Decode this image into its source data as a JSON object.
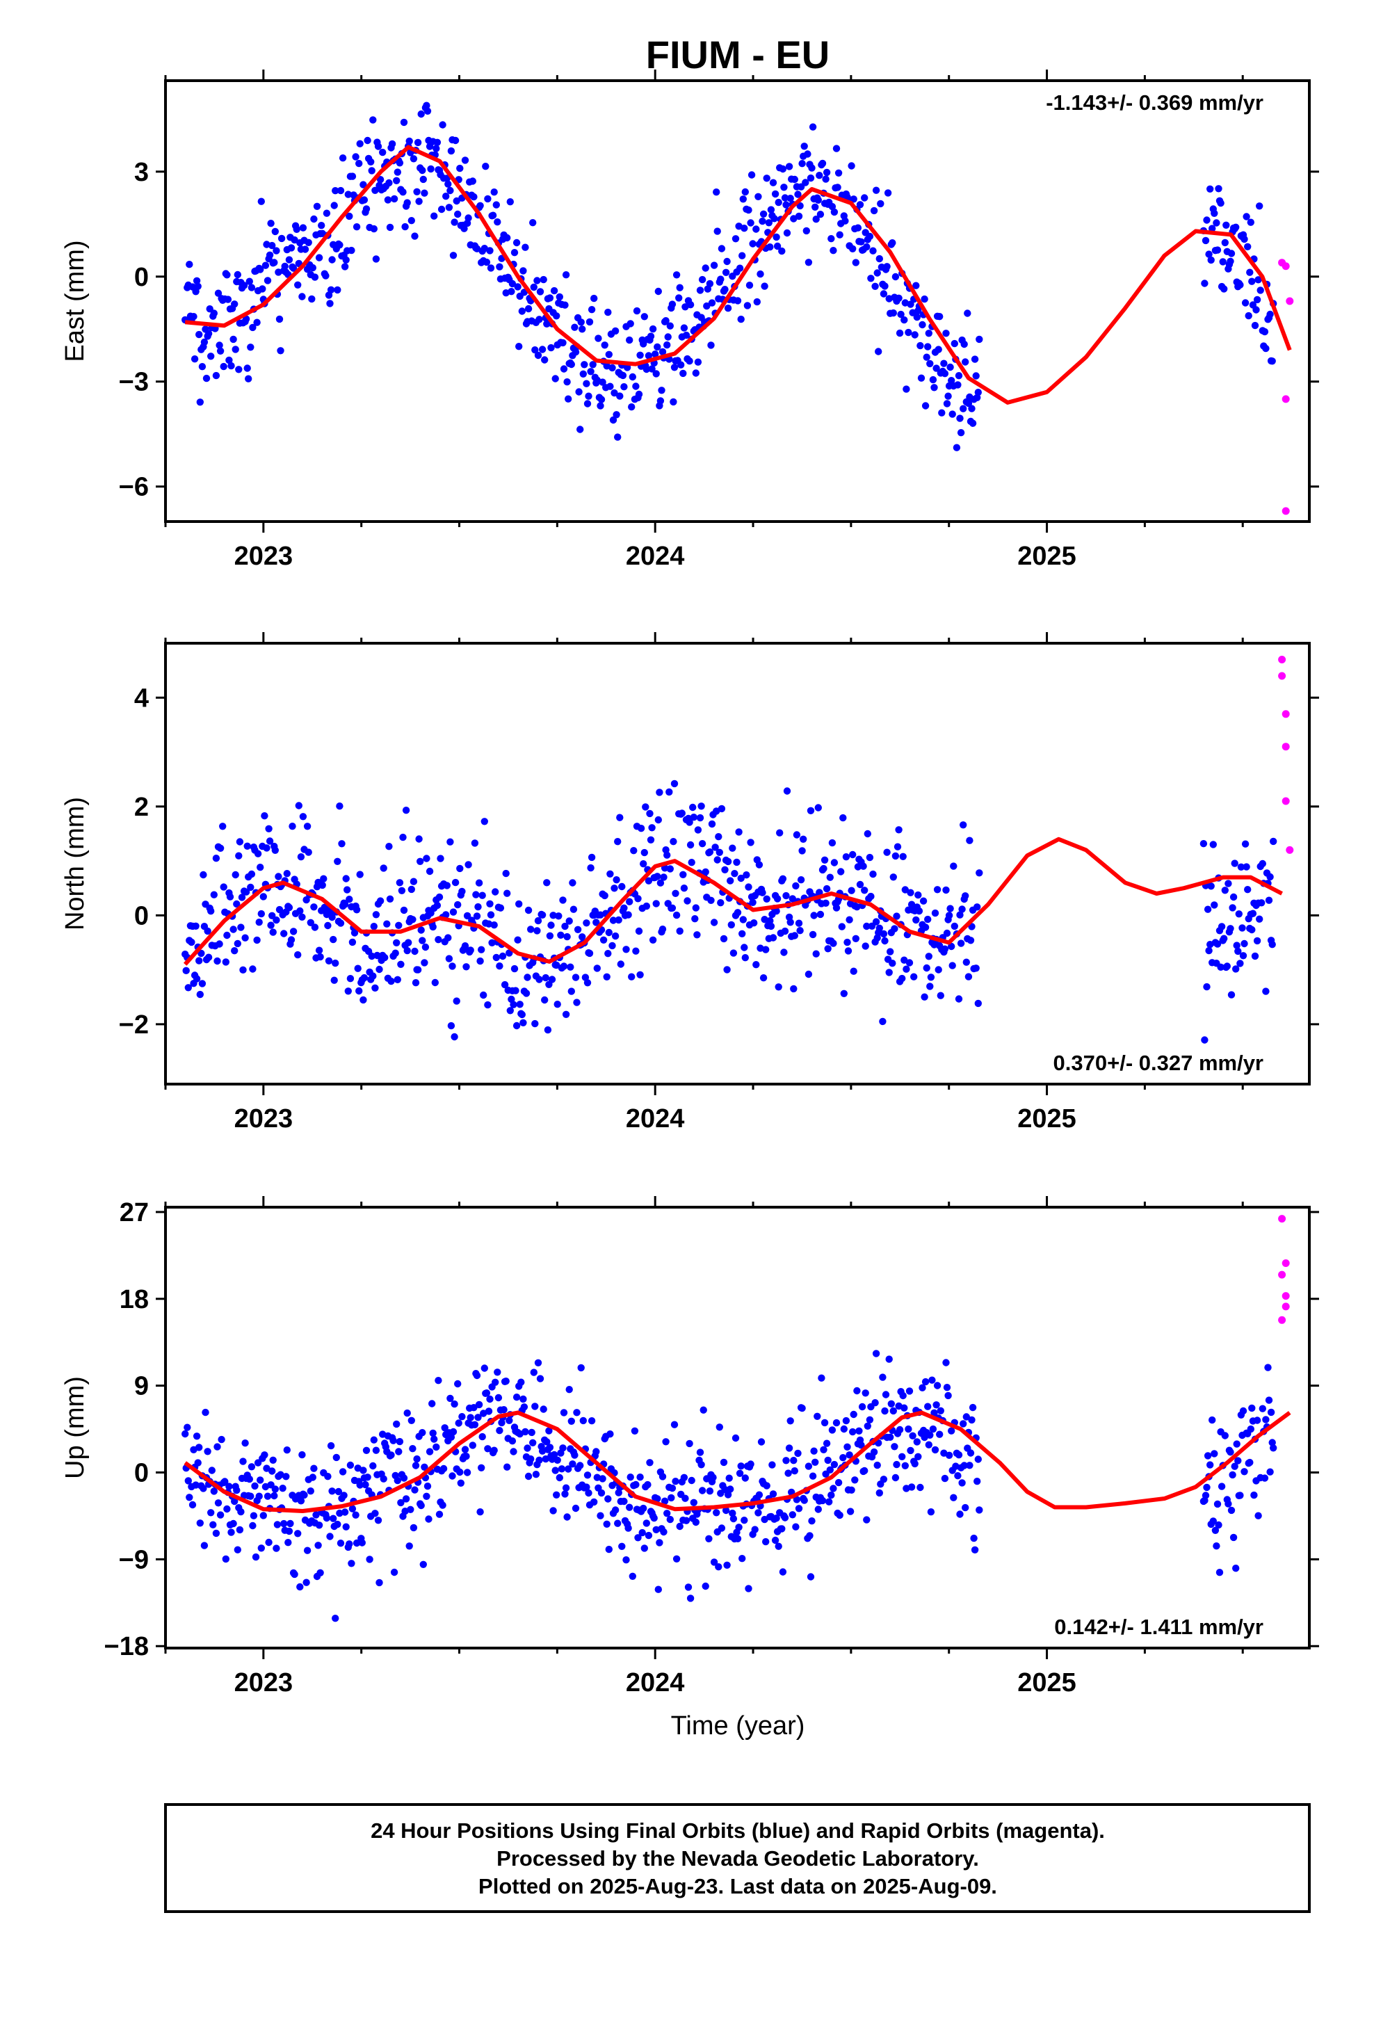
{
  "title": "FIUM - EU",
  "xlabel": "Time (year)",
  "footer": {
    "line1": "24 Hour Positions Using Final Orbits (blue) and Rapid Orbits (magenta).",
    "line2": "Processed by the Nevada Geodetic Laboratory.",
    "line3": "Plotted on 2025-Aug-23. Last data on 2025-Aug-09."
  },
  "colors": {
    "final": "#0000ff",
    "rapid": "#ff00ff",
    "model": "#ff0000"
  },
  "chart_data": [
    {
      "type": "scatter",
      "ylabel": "East (mm)",
      "rate": "-1.143+/- 0.369 mm/yr",
      "rate_position": "top-right",
      "xlim": [
        2022.75,
        2025.67
      ],
      "ylim": [
        -7.0,
        5.6
      ],
      "xticks": [
        2023,
        2024,
        2025
      ],
      "yticks": [
        -6,
        -3,
        0,
        3
      ],
      "final_data_range": [
        [
          2022.8,
          2024.83
        ],
        [
          2025.4,
          2025.58
        ]
      ],
      "series": [
        {
          "name": "Final Orbits",
          "color": "blue",
          "sampled_points": [
            [
              2022.8,
              -1.2
            ],
            [
              2022.9,
              -1.6
            ],
            [
              2023.0,
              -0.4
            ],
            [
              2023.1,
              0.6
            ],
            [
              2023.2,
              1.4
            ],
            [
              2023.3,
              2.8
            ],
            [
              2023.4,
              3.6
            ],
            [
              2023.5,
              2.6
            ],
            [
              2023.6,
              0.8
            ],
            [
              2023.7,
              -0.9
            ],
            [
              2023.8,
              -2.2
            ],
            [
              2023.9,
              -2.6
            ],
            [
              2024.0,
              -2.3
            ],
            [
              2024.1,
              -1.2
            ],
            [
              2024.2,
              0.5
            ],
            [
              2024.3,
              1.9
            ],
            [
              2024.4,
              2.6
            ],
            [
              2024.5,
              1.8
            ],
            [
              2024.6,
              0.0
            ],
            [
              2024.7,
              -2.0
            ],
            [
              2024.8,
              -3.3
            ],
            [
              2025.42,
              1.4
            ],
            [
              2025.5,
              0.5
            ],
            [
              2025.58,
              -1.8
            ]
          ]
        },
        {
          "name": "Rapid Orbits",
          "color": "magenta",
          "points": [
            [
              2025.6,
              0.4
            ],
            [
              2025.61,
              0.3
            ],
            [
              2025.62,
              -0.7
            ],
            [
              2025.61,
              -3.5
            ],
            [
              2025.61,
              -6.7
            ]
          ]
        },
        {
          "name": "model",
          "color": "red",
          "curve": [
            [
              2022.8,
              -1.3
            ],
            [
              2022.9,
              -1.4
            ],
            [
              2023.0,
              -0.8
            ],
            [
              2023.1,
              0.3
            ],
            [
              2023.2,
              1.7
            ],
            [
              2023.3,
              3.0
            ],
            [
              2023.37,
              3.7
            ],
            [
              2023.45,
              3.3
            ],
            [
              2023.55,
              1.8
            ],
            [
              2023.65,
              0.0
            ],
            [
              2023.75,
              -1.5
            ],
            [
              2023.85,
              -2.4
            ],
            [
              2023.95,
              -2.5
            ],
            [
              2024.05,
              -2.2
            ],
            [
              2024.15,
              -1.2
            ],
            [
              2024.25,
              0.5
            ],
            [
              2024.35,
              2.0
            ],
            [
              2024.4,
              2.5
            ],
            [
              2024.5,
              2.1
            ],
            [
              2024.6,
              0.7
            ],
            [
              2024.7,
              -1.2
            ],
            [
              2024.8,
              -2.9
            ],
            [
              2024.9,
              -3.6
            ],
            [
              2025.0,
              -3.3
            ],
            [
              2025.1,
              -2.3
            ],
            [
              2025.2,
              -0.9
            ],
            [
              2025.3,
              0.6
            ],
            [
              2025.38,
              1.3
            ],
            [
              2025.47,
              1.2
            ],
            [
              2025.55,
              0.0
            ],
            [
              2025.62,
              -2.1
            ]
          ]
        }
      ]
    },
    {
      "type": "scatter",
      "ylabel": "North (mm)",
      "rate": "0.370+/- 0.327 mm/yr",
      "rate_position": "bottom-right",
      "xlim": [
        2022.75,
        2025.67
      ],
      "ylim": [
        -3.1,
        5.0
      ],
      "xticks": [
        2023,
        2024,
        2025
      ],
      "yticks": [
        -2,
        0,
        2,
        4
      ],
      "final_data_range": [
        [
          2022.8,
          2024.83
        ],
        [
          2025.4,
          2025.58
        ]
      ],
      "series": [
        {
          "name": "Final Orbits",
          "color": "blue",
          "sampled_points": [
            [
              2022.8,
              -0.8
            ],
            [
              2022.9,
              0.0
            ],
            [
              2023.0,
              0.6
            ],
            [
              2023.1,
              0.3
            ],
            [
              2023.2,
              -0.4
            ],
            [
              2023.3,
              -0.6
            ],
            [
              2023.4,
              -0.2
            ],
            [
              2023.5,
              0.1
            ],
            [
              2023.6,
              -0.5
            ],
            [
              2023.7,
              -0.9
            ],
            [
              2023.8,
              -0.8
            ],
            [
              2023.9,
              0.0
            ],
            [
              2024.0,
              0.8
            ],
            [
              2024.1,
              1.1
            ],
            [
              2024.2,
              0.4
            ],
            [
              2024.3,
              0.1
            ],
            [
              2024.4,
              0.4
            ],
            [
              2024.5,
              0.3
            ],
            [
              2024.6,
              -0.1
            ],
            [
              2024.7,
              -0.5
            ],
            [
              2024.8,
              -0.3
            ],
            [
              2025.45,
              -0.3
            ],
            [
              2025.52,
              0.3
            ]
          ]
        },
        {
          "name": "Rapid Orbits",
          "color": "magenta",
          "points": [
            [
              2025.6,
              4.7
            ],
            [
              2025.6,
              4.4
            ],
            [
              2025.61,
              3.7
            ],
            [
              2025.61,
              3.1
            ],
            [
              2025.61,
              2.1
            ],
            [
              2025.62,
              1.2
            ]
          ]
        },
        {
          "name": "model",
          "color": "red",
          "curve": [
            [
              2022.8,
              -0.9
            ],
            [
              2022.9,
              -0.1
            ],
            [
              2023.0,
              0.5
            ],
            [
              2023.05,
              0.6
            ],
            [
              2023.15,
              0.3
            ],
            [
              2023.25,
              -0.3
            ],
            [
              2023.35,
              -0.3
            ],
            [
              2023.45,
              -0.05
            ],
            [
              2023.55,
              -0.2
            ],
            [
              2023.65,
              -0.7
            ],
            [
              2023.73,
              -0.85
            ],
            [
              2023.82,
              -0.5
            ],
            [
              2023.92,
              0.3
            ],
            [
              2024.0,
              0.9
            ],
            [
              2024.05,
              1.0
            ],
            [
              2024.15,
              0.6
            ],
            [
              2024.25,
              0.1
            ],
            [
              2024.35,
              0.2
            ],
            [
              2024.45,
              0.4
            ],
            [
              2024.55,
              0.2
            ],
            [
              2024.65,
              -0.3
            ],
            [
              2024.75,
              -0.5
            ],
            [
              2024.85,
              0.2
            ],
            [
              2024.95,
              1.1
            ],
            [
              2025.03,
              1.4
            ],
            [
              2025.1,
              1.2
            ],
            [
              2025.2,
              0.6
            ],
            [
              2025.28,
              0.4
            ],
            [
              2025.35,
              0.5
            ],
            [
              2025.45,
              0.7
            ],
            [
              2025.52,
              0.7
            ],
            [
              2025.6,
              0.4
            ]
          ]
        }
      ]
    },
    {
      "type": "scatter",
      "ylabel": "Up (mm)",
      "rate": "0.142+/- 1.411 mm/yr",
      "rate_position": "bottom-right",
      "xlim": [
        2022.75,
        2025.67
      ],
      "ylim": [
        -18.2,
        27.5
      ],
      "xticks": [
        2023,
        2024,
        2025
      ],
      "yticks": [
        -18,
        -9,
        0,
        9,
        18,
        27
      ],
      "final_data_range": [
        [
          2022.8,
          2024.83
        ],
        [
          2025.4,
          2025.58
        ]
      ],
      "series": [
        {
          "name": "Final Orbits",
          "color": "blue",
          "sampled_points": [
            [
              2022.8,
              1.0
            ],
            [
              2022.9,
              -1.5
            ],
            [
              2023.0,
              -4.0
            ],
            [
              2023.1,
              -4.0
            ],
            [
              2023.2,
              -3.5
            ],
            [
              2023.3,
              -2.0
            ],
            [
              2023.4,
              0.5
            ],
            [
              2023.5,
              3.5
            ],
            [
              2023.6,
              5.5
            ],
            [
              2023.7,
              4.0
            ],
            [
              2023.8,
              1.0
            ],
            [
              2023.9,
              -2.0
            ],
            [
              2024.0,
              -4.0
            ],
            [
              2024.1,
              -4.0
            ],
            [
              2024.2,
              -3.5
            ],
            [
              2024.3,
              -3.0
            ],
            [
              2024.4,
              -1.5
            ],
            [
              2024.5,
              1.5
            ],
            [
              2024.6,
              5.5
            ],
            [
              2024.7,
              5.0
            ],
            [
              2024.8,
              1.0
            ],
            [
              2025.45,
              -1.5
            ],
            [
              2025.55,
              3.5
            ]
          ]
        },
        {
          "name": "Rapid Orbits",
          "color": "magenta",
          "points": [
            [
              2025.6,
              26.3
            ],
            [
              2025.61,
              21.7
            ],
            [
              2025.6,
              20.5
            ],
            [
              2025.61,
              18.3
            ],
            [
              2025.61,
              17.2
            ],
            [
              2025.6,
              15.8
            ]
          ]
        },
        {
          "name": "model",
          "color": "red",
          "curve": [
            [
              2022.8,
              1.0
            ],
            [
              2022.9,
              -2.0
            ],
            [
              2023.0,
              -3.8
            ],
            [
              2023.1,
              -4.0
            ],
            [
              2023.2,
              -3.5
            ],
            [
              2023.3,
              -2.5
            ],
            [
              2023.4,
              -0.5
            ],
            [
              2023.5,
              3.0
            ],
            [
              2023.6,
              5.8
            ],
            [
              2023.65,
              6.2
            ],
            [
              2023.75,
              4.5
            ],
            [
              2023.85,
              1.0
            ],
            [
              2023.95,
              -2.5
            ],
            [
              2024.05,
              -3.8
            ],
            [
              2024.15,
              -3.6
            ],
            [
              2024.25,
              -3.2
            ],
            [
              2024.35,
              -2.5
            ],
            [
              2024.45,
              -0.5
            ],
            [
              2024.55,
              3.0
            ],
            [
              2024.63,
              5.7
            ],
            [
              2024.68,
              6.2
            ],
            [
              2024.78,
              4.5
            ],
            [
              2024.88,
              1.0
            ],
            [
              2024.95,
              -2.0
            ],
            [
              2025.02,
              -3.6
            ],
            [
              2025.1,
              -3.6
            ],
            [
              2025.2,
              -3.2
            ],
            [
              2025.3,
              -2.7
            ],
            [
              2025.38,
              -1.5
            ],
            [
              2025.46,
              1.0
            ],
            [
              2025.54,
              3.8
            ],
            [
              2025.62,
              6.2
            ]
          ]
        }
      ]
    }
  ]
}
